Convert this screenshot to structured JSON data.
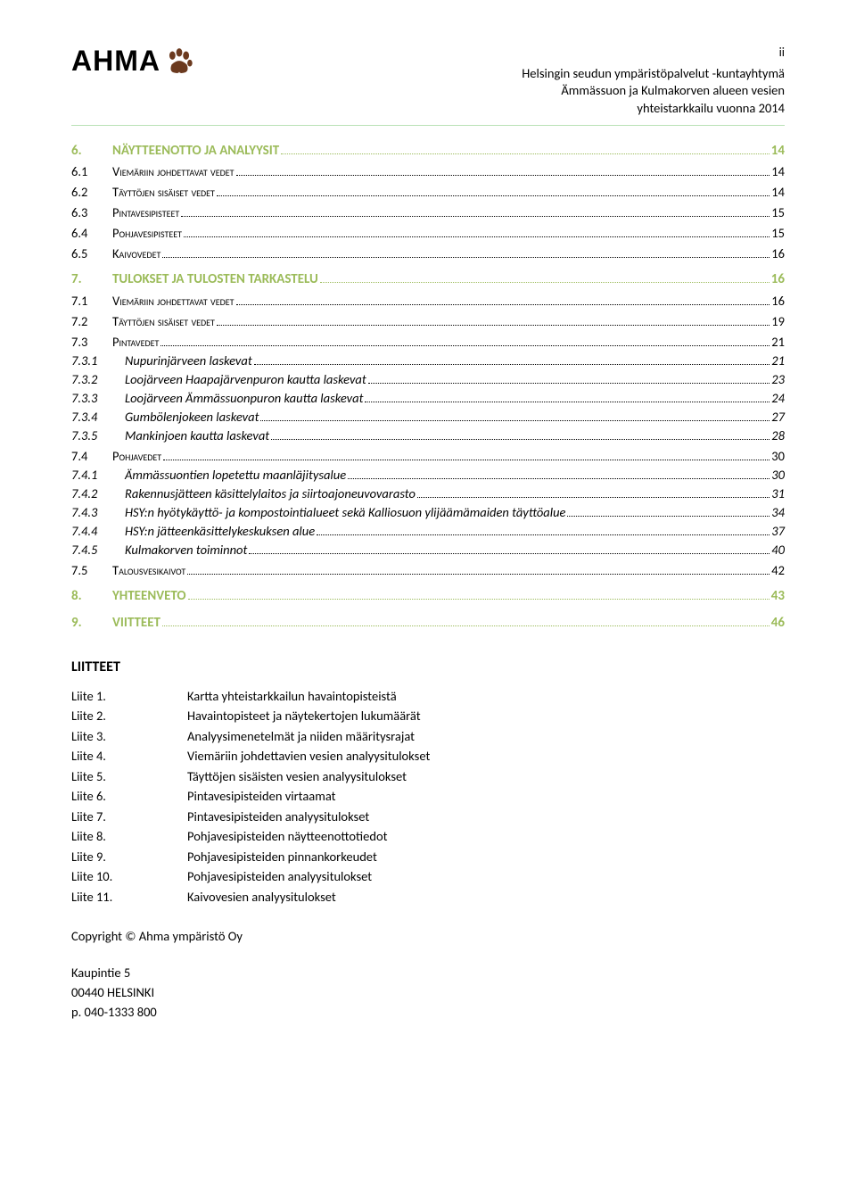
{
  "page_number": "ii",
  "logo_text": "AHMA",
  "header": {
    "line1": "Helsingin seudun ympäristöpalvelut -kuntayhtymä",
    "line2": "Ämmässuon ja Kulmakorven alueen vesien",
    "line3": "yhteistarkkailu vuonna 2014"
  },
  "toc": [
    {
      "level": 0,
      "num": "6.",
      "title": "NÄYTTEENOTTO JA ANALYYSIT",
      "page": "14"
    },
    {
      "level": 1,
      "num": "6.1",
      "title": "Viemäriin johdettavat vedet",
      "page": "14"
    },
    {
      "level": 1,
      "num": "6.2",
      "title": "Täyttöjen sisäiset vedet",
      "page": "14"
    },
    {
      "level": 1,
      "num": "6.3",
      "title": "Pintavesipisteet",
      "page": "15"
    },
    {
      "level": 1,
      "num": "6.4",
      "title": "Pohjavesipisteet",
      "page": "15"
    },
    {
      "level": 1,
      "num": "6.5",
      "title": "Kaivovedet",
      "page": "16"
    },
    {
      "level": 0,
      "num": "7.",
      "title": "TULOKSET JA TULOSTEN TARKASTELU",
      "page": "16"
    },
    {
      "level": 1,
      "num": "7.1",
      "title": "Viemäriin johdettavat vedet",
      "page": "16"
    },
    {
      "level": 1,
      "num": "7.2",
      "title": "Täyttöjen sisäiset vedet",
      "page": "19"
    },
    {
      "level": 1,
      "num": "7.3",
      "title": "Pintavedet",
      "page": "21"
    },
    {
      "level": 2,
      "num": "7.3.1",
      "title": "Nupurinjärveen laskevat",
      "page": "21"
    },
    {
      "level": 2,
      "num": "7.3.2",
      "title": "Loojärveen Haapajärvenpuron kautta laskevat",
      "page": "23"
    },
    {
      "level": 2,
      "num": "7.3.3",
      "title": "Loojärveen Ämmässuonpuron kautta laskevat",
      "page": "24"
    },
    {
      "level": 2,
      "num": "7.3.4",
      "title": "Gumbölenjokeen laskevat",
      "page": "27"
    },
    {
      "level": 2,
      "num": "7.3.5",
      "title": "Mankinjoen kautta laskevat",
      "page": "28"
    },
    {
      "level": 1,
      "num": "7.4",
      "title": "Pohjavedet",
      "page": "30"
    },
    {
      "level": 2,
      "num": "7.4.1",
      "title": "Ämmässuontien lopetettu maanläjitysalue",
      "page": "30"
    },
    {
      "level": 2,
      "num": "7.4.2",
      "title": "Rakennusjätteen käsittelylaitos ja siirtoajoneuvovarasto",
      "page": "31"
    },
    {
      "level": 2,
      "num": "7.4.3",
      "title": "HSY:n hyötykäyttö- ja kompostointialueet sekä Kalliosuon ylijäämämaiden täyttöalue",
      "page": "34"
    },
    {
      "level": 2,
      "num": "7.4.4",
      "title": "HSY:n jätteenkäsittelykeskuksen alue",
      "page": "37"
    },
    {
      "level": 2,
      "num": "7.4.5",
      "title": "Kulmakorven toiminnot",
      "page": "40"
    },
    {
      "level": 1,
      "num": "7.5",
      "title": "Talousvesikaivot",
      "page": "42"
    },
    {
      "level": 0,
      "num": "8.",
      "title": "YHTEENVETO",
      "page": "43"
    },
    {
      "level": 0,
      "num": "9.",
      "title": "VIITTEET",
      "page": "46"
    }
  ],
  "attachments_heading": "LIITTEET",
  "attachments": [
    {
      "label": "Liite 1.",
      "text": "Kartta yhteistarkkailun havaintopisteistä"
    },
    {
      "label": "Liite 2.",
      "text": "Havaintopisteet ja näytekertojen lukumäärät"
    },
    {
      "label": "Liite 3.",
      "text": "Analyysimenetelmät ja niiden määritysrajat"
    },
    {
      "label": "Liite 4.",
      "text": "Viemäriin johdettavien vesien analyysitulokset"
    },
    {
      "label": "Liite 5.",
      "text": "Täyttöjen sisäisten vesien analyysitulokset"
    },
    {
      "label": "Liite 6.",
      "text": "Pintavesipisteiden virtaamat"
    },
    {
      "label": "Liite 7.",
      "text": "Pintavesipisteiden analyysitulokset"
    },
    {
      "label": "Liite 8.",
      "text": "Pohjavesipisteiden näytteenottotiedot"
    },
    {
      "label": "Liite 9.",
      "text": "Pohjavesipisteiden pinnankorkeudet"
    },
    {
      "label": "Liite 10.",
      "text": "Pohjavesipisteiden analyysitulokset"
    },
    {
      "label": "Liite 11.",
      "text": "Kaivovesien analyysitulokset"
    }
  ],
  "footer": {
    "copyright": "Copyright © Ahma ympäristö Oy",
    "address1": "Kaupintie 5",
    "address2": "00440 HELSINKI",
    "phone": "p. 040-1333 800"
  },
  "colors": {
    "accent_green": "#9bbb59",
    "divider_green": "#b9e1b6",
    "paw_brown": "#6b3a1f"
  }
}
